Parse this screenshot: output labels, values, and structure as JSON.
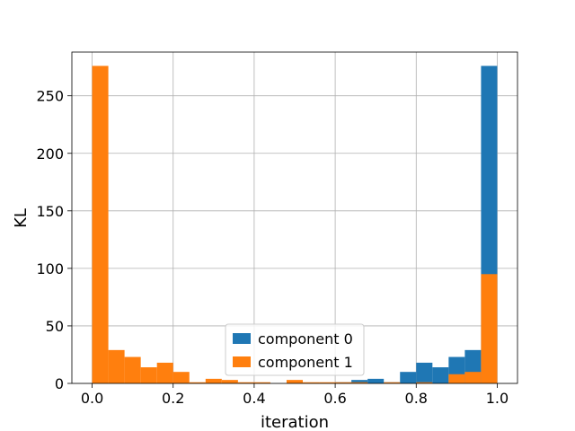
{
  "chart_data": {
    "type": "bar",
    "subtype": "histogram-overlaid",
    "xlabel": "iteration",
    "ylabel": "KL",
    "xlim": [
      -0.05,
      1.05
    ],
    "ylim": [
      0,
      288
    ],
    "xticks": [
      0.0,
      0.2,
      0.4,
      0.6,
      0.8,
      1.0
    ],
    "xtick_labels": [
      "0.0",
      "0.2",
      "0.4",
      "0.6",
      "0.8",
      "1.0"
    ],
    "yticks": [
      0,
      50,
      100,
      150,
      200,
      250
    ],
    "ytick_labels": [
      "0",
      "50",
      "100",
      "150",
      "200",
      "250"
    ],
    "grid": true,
    "legend_position": "bottom-center",
    "bin_edges": [
      0.0,
      0.04,
      0.08,
      0.12,
      0.16,
      0.2,
      0.24,
      0.28,
      0.32,
      0.36,
      0.4,
      0.44,
      0.48,
      0.52,
      0.56,
      0.6,
      0.64,
      0.68,
      0.72,
      0.76,
      0.8,
      0.84,
      0.88,
      0.92,
      0.96,
      1.0
    ],
    "series": [
      {
        "name": "component 0",
        "color": "#1f77b4",
        "values": [
          0,
          0,
          0,
          0,
          0,
          0,
          0,
          0,
          0,
          0,
          0,
          0,
          1,
          0,
          0,
          1,
          3,
          4,
          1,
          10,
          18,
          14,
          23,
          29,
          276
        ]
      },
      {
        "name": "component 1",
        "color": "#ff7f0e",
        "values": [
          276,
          29,
          23,
          14,
          18,
          10,
          1,
          4,
          3,
          1,
          1,
          0,
          3,
          1,
          1,
          1,
          1,
          0,
          1,
          0,
          1,
          0,
          8,
          10,
          95
        ]
      }
    ]
  }
}
